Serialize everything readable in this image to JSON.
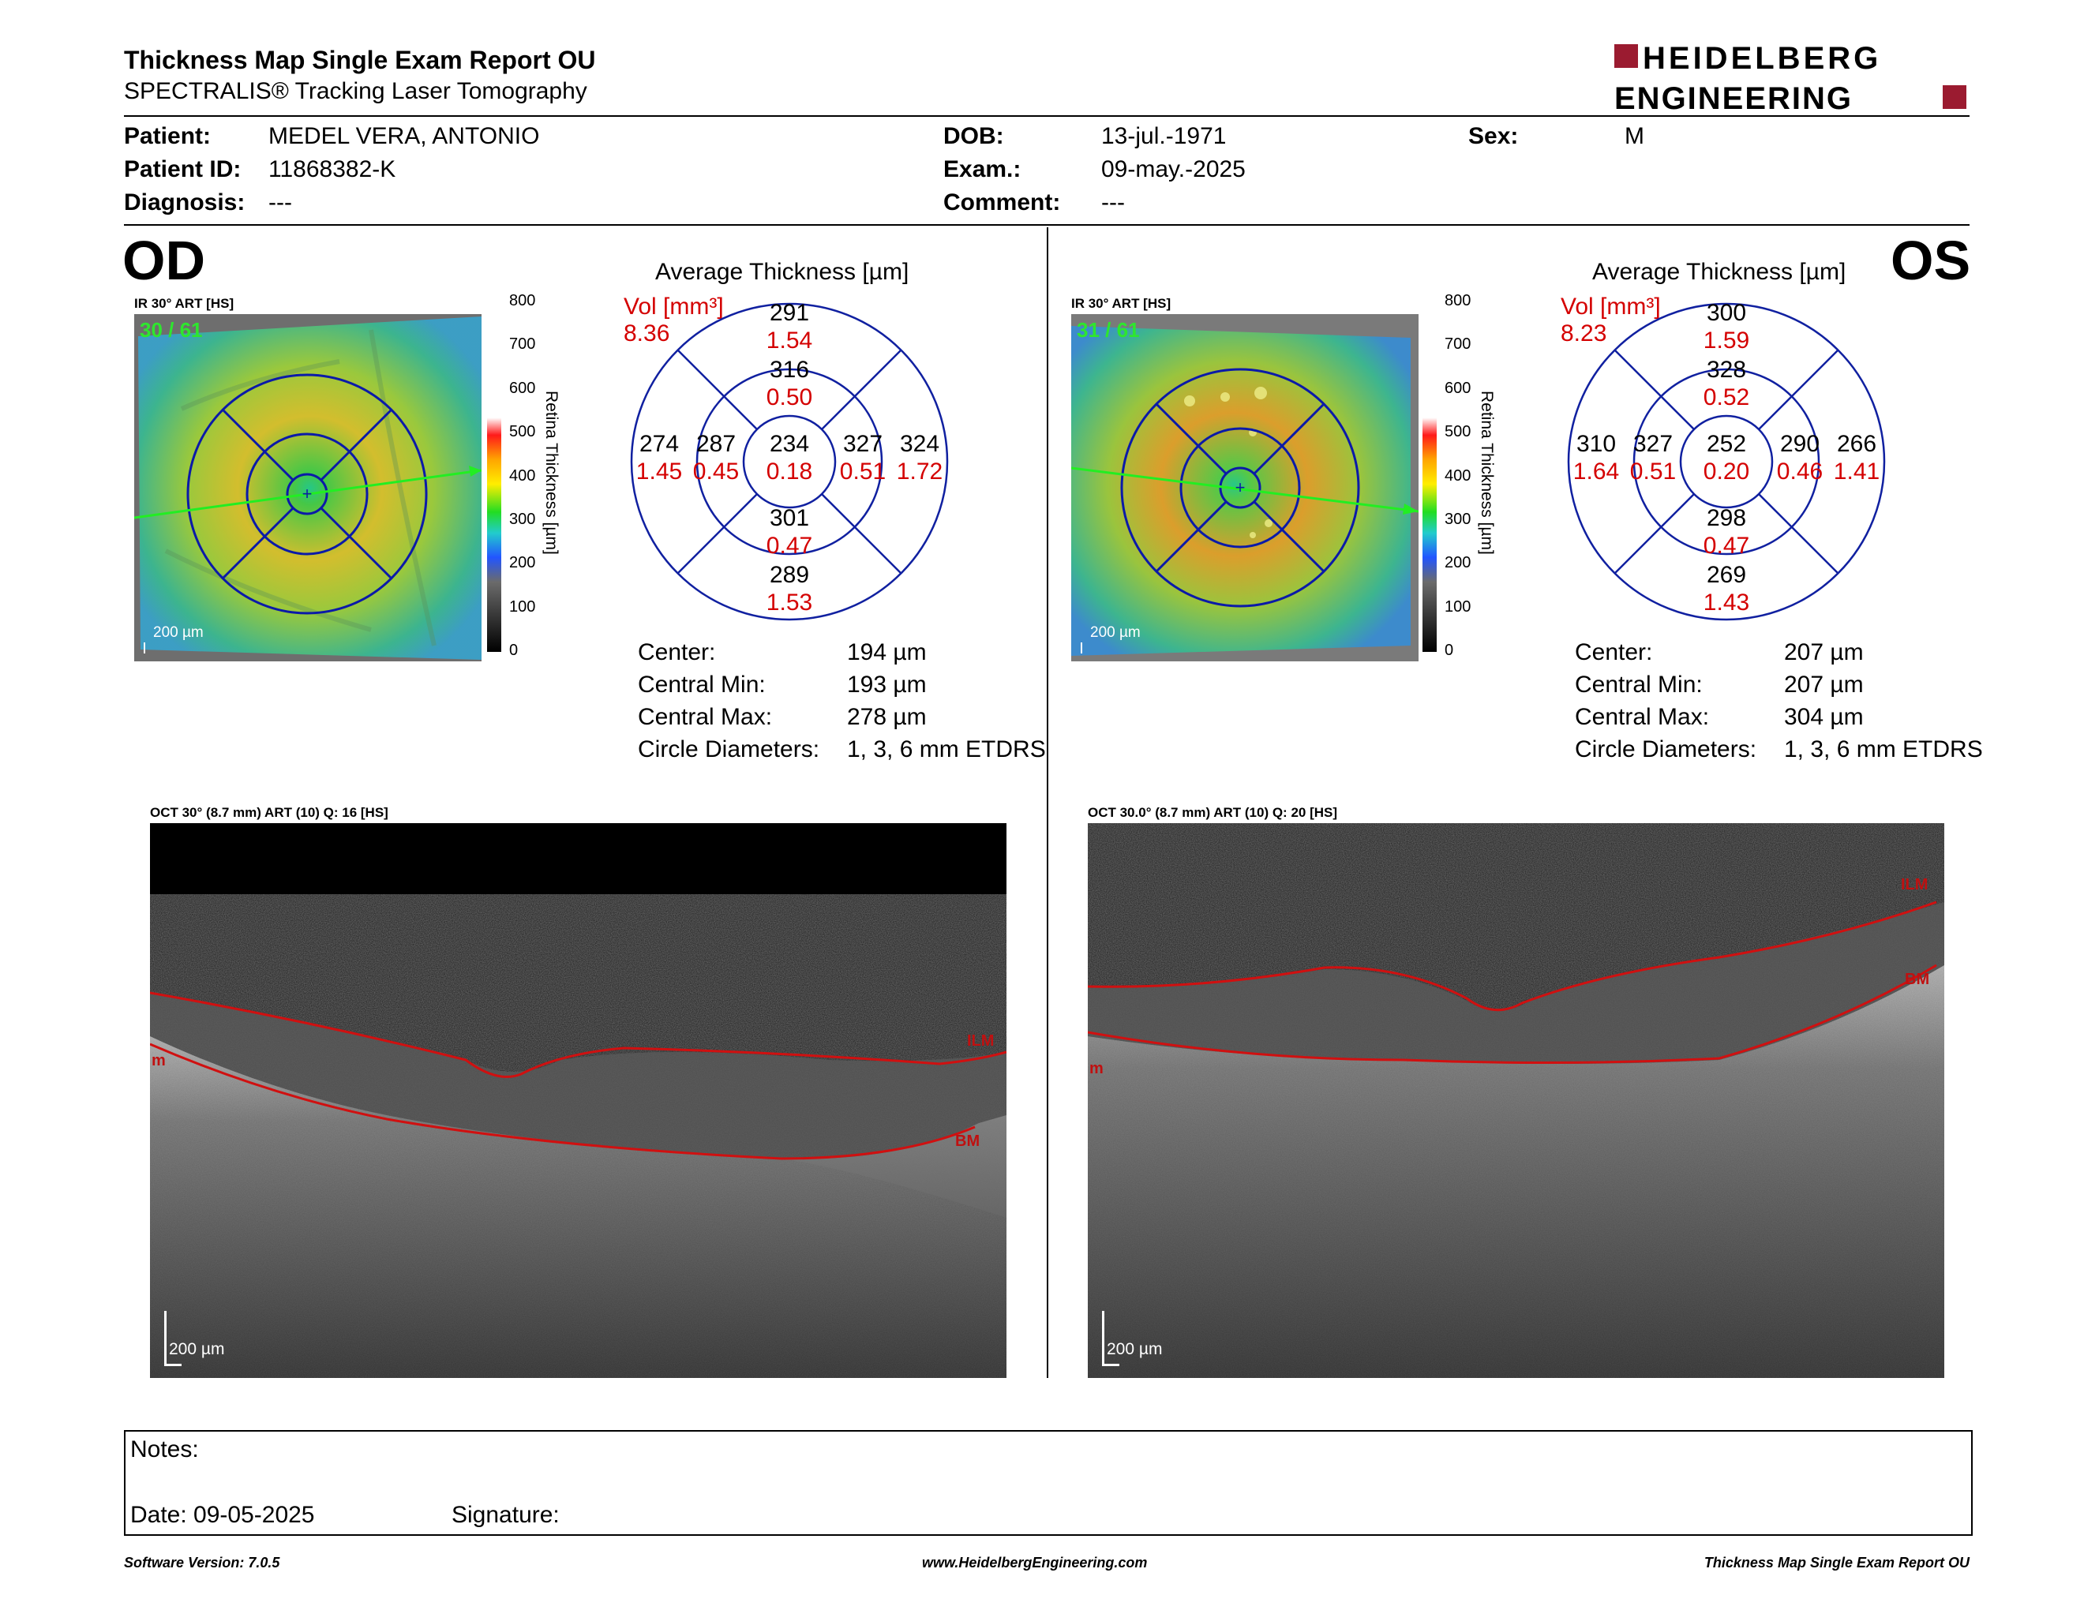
{
  "header": {
    "title": "Thickness Map Single Exam Report OU",
    "subtitle": "SPECTRALIS® Tracking Laser Tomography",
    "logo_line1": "HEIDELBERG",
    "logo_line2": "ENGINEERING"
  },
  "patient": {
    "patient_label": "Patient:",
    "patient_value": "MEDEL VERA, ANTONIO",
    "id_label": "Patient ID:",
    "id_value": "11868382-K",
    "diagnosis_label": "Diagnosis:",
    "diagnosis_value": "---",
    "dob_label": "DOB:",
    "dob_value": "13-jul.-1971",
    "exam_label": "Exam.:",
    "exam_value": "09-may.-2025",
    "comment_label": "Comment:",
    "comment_value": "---",
    "sex_label": "Sex:",
    "sex_value": "M"
  },
  "od": {
    "eye_label": "OD",
    "image_label": "IR 30° ART [HS]",
    "frame_count": "30 / 61",
    "scale_label": "200 µm",
    "colorbar_ticks": [
      "800",
      "700",
      "600",
      "500",
      "400",
      "300",
      "200",
      "100",
      "0"
    ],
    "colorbar_title": "Retina Thickness [µm]",
    "avg_title": "Average Thickness [µm]",
    "vol_label": "Vol [mm³]",
    "vol_value": "8.36",
    "sectors": {
      "center": {
        "t": "234",
        "v": "0.18"
      },
      "inner_sup": {
        "t": "316",
        "v": "0.50"
      },
      "inner_inf": {
        "t": "301",
        "v": "0.47"
      },
      "inner_left": {
        "t": "287",
        "v": "0.45"
      },
      "inner_right": {
        "t": "327",
        "v": "0.51"
      },
      "outer_sup": {
        "t": "291",
        "v": "1.54"
      },
      "outer_inf": {
        "t": "289",
        "v": "1.53"
      },
      "outer_left": {
        "t": "274",
        "v": "1.45"
      },
      "outer_right": {
        "t": "324",
        "v": "1.72"
      }
    },
    "stats": [
      {
        "label": "Center:",
        "value": "194 µm"
      },
      {
        "label": "Central Min:",
        "value": "193 µm"
      },
      {
        "label": "Central Max:",
        "value": "278 µm"
      },
      {
        "label": "Circle Diameters:",
        "value": "1, 3, 6 mm ETDRS"
      }
    ],
    "oct_label": "OCT 30° (8.7 mm) ART (10) Q: 16 [HS]",
    "oct_scale": "200 µm",
    "ilm": "ILM",
    "bm": "BM",
    "edge": "m"
  },
  "os": {
    "eye_label": "OS",
    "image_label": "IR 30° ART [HS]",
    "frame_count": "31 / 61",
    "scale_label": "200 µm",
    "colorbar_ticks": [
      "800",
      "700",
      "600",
      "500",
      "400",
      "300",
      "200",
      "100",
      "0"
    ],
    "colorbar_title": "Retina Thickness [µm]",
    "avg_title": "Average Thickness [µm]",
    "vol_label": "Vol [mm³]",
    "vol_value": "8.23",
    "sectors": {
      "center": {
        "t": "252",
        "v": "0.20"
      },
      "inner_sup": {
        "t": "328",
        "v": "0.52"
      },
      "inner_inf": {
        "t": "298",
        "v": "0.47"
      },
      "inner_left": {
        "t": "327",
        "v": "0.51"
      },
      "inner_right": {
        "t": "290",
        "v": "0.46"
      },
      "outer_sup": {
        "t": "300",
        "v": "1.59"
      },
      "outer_inf": {
        "t": "269",
        "v": "1.43"
      },
      "outer_left": {
        "t": "310",
        "v": "1.64"
      },
      "outer_right": {
        "t": "266",
        "v": "1.41"
      }
    },
    "stats": [
      {
        "label": "Center:",
        "value": "207 µm"
      },
      {
        "label": "Central Min:",
        "value": "207 µm"
      },
      {
        "label": "Central Max:",
        "value": "304 µm"
      },
      {
        "label": "Circle Diameters:",
        "value": "1, 3, 6 mm ETDRS"
      }
    ],
    "oct_label": "OCT 30.0° (8.7 mm) ART (10) Q: 20 [HS]",
    "oct_scale": "200 µm",
    "ilm": "ILM",
    "bm": "BM",
    "edge": "m"
  },
  "notes": {
    "notes_label": "Notes:",
    "date_label": "Date: 09-05-2025",
    "signature_label": "Signature:"
  },
  "footer": {
    "software": "Software Version: 7.0.5",
    "website": "www.HeidelbergEngineering.com",
    "report": "Thickness Map Single Exam Report OU"
  },
  "colors": {
    "accent_red": "#d40000",
    "logo_red": "#9b1b30",
    "etdrs_blue": "#1020a0",
    "scan_line_green": "#22ee22"
  }
}
